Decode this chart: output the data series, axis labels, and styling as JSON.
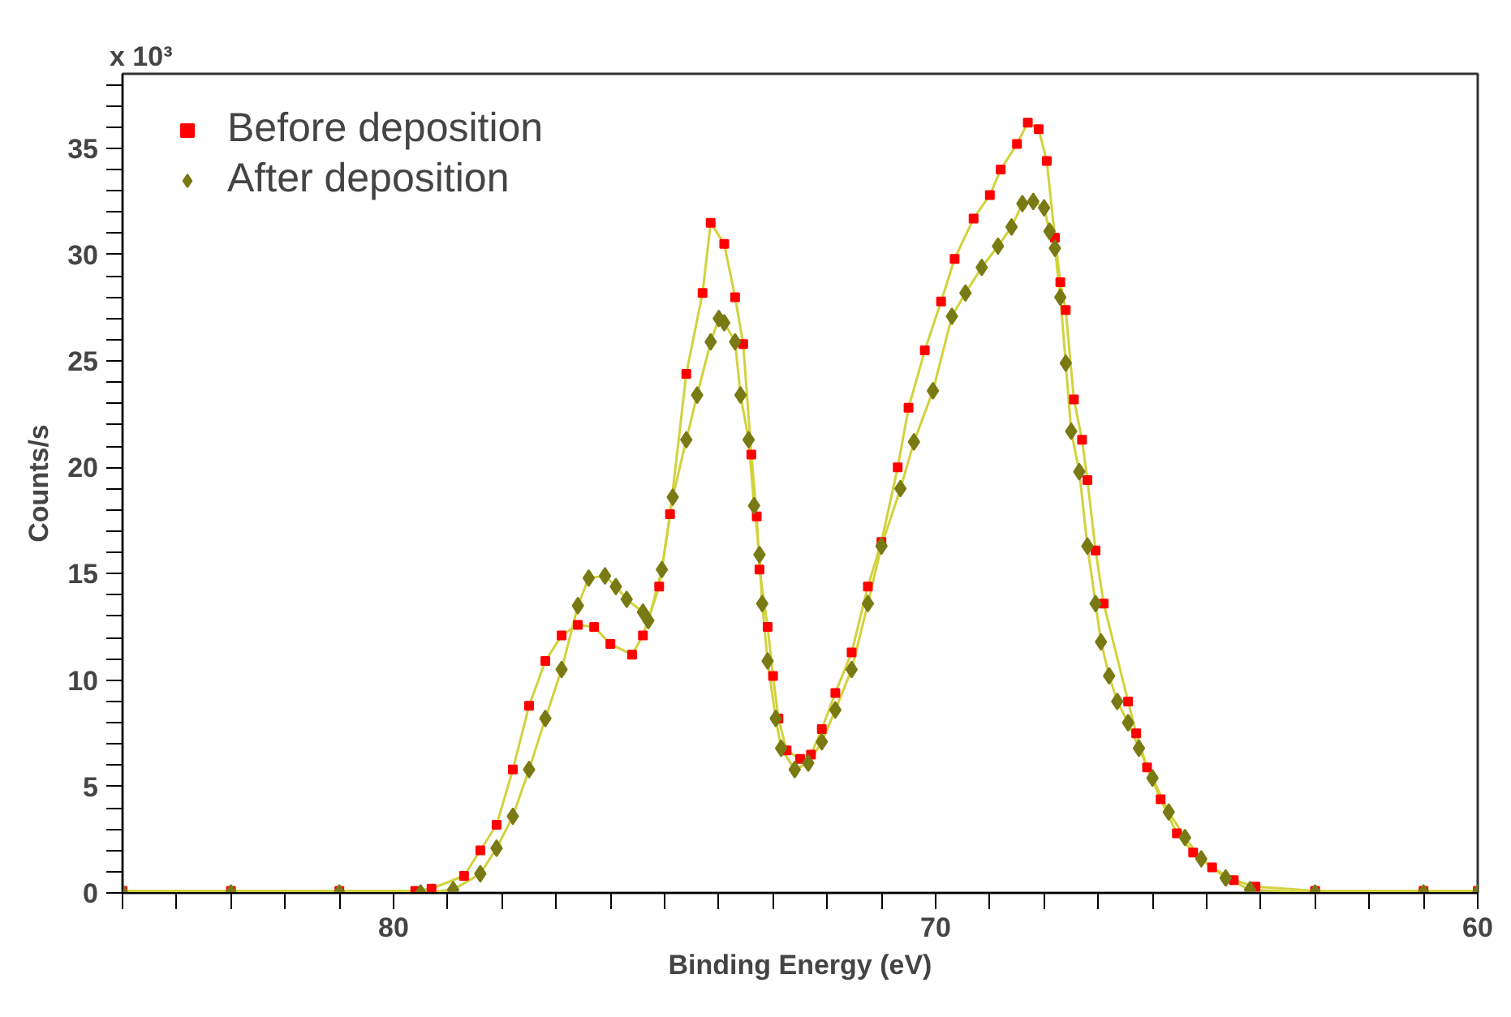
{
  "chart_data": {
    "type": "scatter",
    "xlabel": "Binding Energy (eV)",
    "ylabel": "Counts/s",
    "annotations": [
      "x 10³"
    ],
    "xlim": [
      85,
      60
    ],
    "ylim": [
      0,
      38.5
    ],
    "xticks": [
      {
        "value": 85,
        "label": null
      },
      {
        "value": 84,
        "label": null
      },
      {
        "value": 83,
        "label": null
      },
      {
        "value": 82,
        "label": null
      },
      {
        "value": 81,
        "label": null
      },
      80,
      {
        "value": 79,
        "label": null
      },
      {
        "value": 78,
        "label": null
      },
      {
        "value": 77,
        "label": null
      },
      {
        "value": 76,
        "label": null
      },
      {
        "value": 75,
        "label": null
      },
      {
        "value": 74,
        "label": null
      },
      {
        "value": 73,
        "label": null
      },
      {
        "value": 72,
        "label": null
      },
      {
        "value": 71,
        "label": null
      },
      70,
      {
        "value": 69,
        "label": null
      },
      {
        "value": 68,
        "label": null
      },
      {
        "value": 67,
        "label": null
      },
      {
        "value": 66,
        "label": null
      },
      {
        "value": 65,
        "label": null
      },
      {
        "value": 64,
        "label": null
      },
      {
        "value": 63,
        "label": null
      },
      {
        "value": 62,
        "label": null
      },
      {
        "value": 61,
        "label": null
      },
      60
    ],
    "yticks": [
      0,
      {
        "value": 1,
        "label": null
      },
      {
        "value": 2,
        "label": null
      },
      {
        "value": 3,
        "label": null
      },
      {
        "value": 4,
        "label": null
      },
      5,
      {
        "value": 6,
        "label": null
      },
      {
        "value": 7,
        "label": null
      },
      {
        "value": 8,
        "label": null
      },
      {
        "value": 9,
        "label": null
      },
      10,
      {
        "value": 11,
        "label": null
      },
      {
        "value": 12,
        "label": null
      },
      {
        "value": 13,
        "label": null
      },
      {
        "value": 14,
        "label": null
      },
      15,
      {
        "value": 16,
        "label": null
      },
      {
        "value": 17,
        "label": null
      },
      {
        "value": 18,
        "label": null
      },
      {
        "value": 19,
        "label": null
      },
      20,
      {
        "value": 21,
        "label": null
      },
      {
        "value": 22,
        "label": null
      },
      {
        "value": 23,
        "label": null
      },
      {
        "value": 24,
        "label": null
      },
      25,
      {
        "value": 26,
        "label": null
      },
      {
        "value": 27,
        "label": null
      },
      {
        "value": 28,
        "label": null
      },
      {
        "value": 29,
        "label": null
      },
      30,
      {
        "value": 31,
        "label": null
      },
      {
        "value": 32,
        "label": null
      },
      {
        "value": 33,
        "label": null
      },
      {
        "value": 34,
        "label": null
      },
      35,
      {
        "value": 36,
        "label": null
      },
      {
        "value": 37,
        "label": null
      },
      {
        "value": 38,
        "label": null
      }
    ],
    "grid": false,
    "legend": "top left",
    "series": [
      {
        "type": "line",
        "color": "#d2d23c",
        "x": [
          85,
          83,
          81,
          79.6,
          79.3,
          78.7,
          78.4,
          78.1,
          77.8,
          77.5,
          77.2,
          76.9,
          76.6,
          76.3,
          76.0,
          75.6,
          75.4,
          75.1,
          74.9,
          74.6,
          74.3,
          74.15,
          73.9,
          73.7,
          73.55,
          73.4,
          73.3,
          73.25,
          73.1,
          73.0,
          72.9,
          72.75,
          72.5,
          72.3,
          72.1,
          71.85,
          71.55,
          71.25,
          71.0,
          70.7,
          70.5,
          70.2,
          69.9,
          69.65,
          69.3,
          69.0,
          68.8,
          68.5,
          68.3,
          68.1,
          67.95,
          67.8,
          67.7,
          67.6,
          67.45,
          67.3,
          67.2,
          67.05,
          66.9,
          66.45,
          66.3,
          66.1,
          65.85,
          65.55,
          65.25,
          64.9,
          64.5,
          64.1,
          63,
          61,
          60
        ],
        "values": [
          0.1,
          0.1,
          0.1,
          0.1,
          0.2,
          0.8,
          2,
          3.2,
          5.8,
          8.8,
          10.9,
          12.1,
          12.6,
          12.5,
          11.7,
          11.2,
          12.1,
          14.4,
          17.8,
          24.4,
          28.2,
          31.5,
          30.5,
          28,
          25.8,
          20.6,
          17.7,
          15.2,
          12.5,
          10.2,
          8.2,
          6.7,
          6.3,
          6.5,
          7.7,
          9.4,
          11.3,
          14.4,
          16.5,
          20,
          22.8,
          25.5,
          27.8,
          29.8,
          31.7,
          32.8,
          34,
          35.2,
          36.2,
          35.9,
          34.4,
          30.8,
          28.7,
          27.4,
          23.2,
          21.3,
          19.4,
          16.1,
          13.6,
          9,
          7.5,
          5.9,
          4.4,
          2.8,
          1.9,
          1.2,
          0.6,
          0.3,
          0.1,
          0.1,
          0.1
        ]
      },
      {
        "type": "line",
        "color": "#d2d23c",
        "x": [
          85,
          83,
          81,
          79.5,
          78.9,
          78.4,
          78.1,
          77.8,
          77.5,
          77.2,
          76.9,
          76.6,
          76.4,
          76.1,
          75.9,
          75.7,
          75.4,
          75.3,
          75.05,
          74.85,
          74.6,
          74.4,
          74.15,
          74.0,
          73.9,
          73.7,
          73.6,
          73.45,
          73.35,
          73.25,
          73.2,
          73.1,
          72.95,
          72.85,
          72.6,
          72.35,
          72.1,
          71.85,
          71.55,
          71.25,
          71.0,
          70.65,
          70.4,
          70.05,
          69.7,
          69.45,
          69.15,
          68.85,
          68.6,
          68.4,
          68.2,
          68.0,
          67.9,
          67.8,
          67.7,
          67.6,
          67.5,
          67.35,
          67.2,
          67.05,
          66.95,
          66.8,
          66.65,
          66.45,
          66.25,
          66.0,
          65.7,
          65.4,
          65.1,
          64.65,
          64.2,
          63,
          61,
          60
        ],
        "values": [
          0,
          0,
          0,
          0,
          0.15,
          0.9,
          2.1,
          3.6,
          5.8,
          8.2,
          10.5,
          13.5,
          14.8,
          14.9,
          14.4,
          13.8,
          13.2,
          12.8,
          15.2,
          18.6,
          21.3,
          23.4,
          25.9,
          27,
          26.8,
          25.9,
          23.4,
          21.3,
          18.2,
          15.9,
          13.6,
          10.9,
          8.2,
          6.8,
          5.8,
          6.1,
          7.1,
          8.6,
          10.5,
          13.6,
          16.3,
          19,
          21.2,
          23.6,
          27.1,
          28.2,
          29.4,
          30.4,
          31.3,
          32.4,
          32.5,
          32.2,
          31.1,
          30.3,
          28,
          24.9,
          21.7,
          19.8,
          16.3,
          13.6,
          11.8,
          10.2,
          9.0,
          8.0,
          6.8,
          5.4,
          3.8,
          2.6,
          1.6,
          0.7,
          0.15,
          0,
          0,
          0
        ]
      },
      {
        "name": "Before deposition",
        "color": "#ff0000",
        "marker": "square",
        "x": [
          85,
          83,
          81,
          79.6,
          79.3,
          78.7,
          78.4,
          78.1,
          77.8,
          77.5,
          77.2,
          76.9,
          76.6,
          76.3,
          76.0,
          75.6,
          75.4,
          75.1,
          74.9,
          74.6,
          74.3,
          74.15,
          73.9,
          73.7,
          73.55,
          73.4,
          73.3,
          73.25,
          73.1,
          73.0,
          72.9,
          72.75,
          72.5,
          72.3,
          72.1,
          71.85,
          71.55,
          71.25,
          71.0,
          70.7,
          70.5,
          70.2,
          69.9,
          69.65,
          69.3,
          69.0,
          68.8,
          68.5,
          68.3,
          68.1,
          67.95,
          67.8,
          67.7,
          67.6,
          67.45,
          67.3,
          67.2,
          67.05,
          66.9,
          66.45,
          66.3,
          66.1,
          65.85,
          65.55,
          65.25,
          64.9,
          64.5,
          64.1,
          63,
          61,
          60
        ],
        "values": [
          0.1,
          0.1,
          0.1,
          0.1,
          0.2,
          0.8,
          2,
          3.2,
          5.8,
          8.8,
          10.9,
          12.1,
          12.6,
          12.5,
          11.7,
          11.2,
          12.1,
          14.4,
          17.8,
          24.4,
          28.2,
          31.5,
          30.5,
          28,
          25.8,
          20.6,
          17.7,
          15.2,
          12.5,
          10.2,
          8.2,
          6.7,
          6.3,
          6.5,
          7.7,
          9.4,
          11.3,
          14.4,
          16.5,
          20,
          22.8,
          25.5,
          27.8,
          29.8,
          31.7,
          32.8,
          34,
          35.2,
          36.2,
          35.9,
          34.4,
          30.8,
          28.7,
          27.4,
          23.2,
          21.3,
          19.4,
          16.1,
          13.6,
          9,
          7.5,
          5.9,
          4.4,
          2.8,
          1.9,
          1.2,
          0.6,
          0.3,
          0.1,
          0.1,
          0.1
        ]
      },
      {
        "name": "After deposition",
        "color": "#7a7a14",
        "marker": "diamond",
        "x": [
          85,
          83,
          81,
          79.5,
          78.9,
          78.4,
          78.1,
          77.8,
          77.5,
          77.2,
          76.9,
          76.6,
          76.4,
          76.1,
          75.9,
          75.7,
          75.4,
          75.3,
          75.05,
          74.85,
          74.6,
          74.4,
          74.15,
          74.0,
          73.9,
          73.7,
          73.6,
          73.45,
          73.35,
          73.25,
          73.2,
          73.1,
          72.95,
          72.85,
          72.6,
          72.35,
          72.1,
          71.85,
          71.55,
          71.25,
          71.0,
          70.65,
          70.4,
          70.05,
          69.7,
          69.45,
          69.15,
          68.85,
          68.6,
          68.4,
          68.2,
          68.0,
          67.9,
          67.8,
          67.7,
          67.6,
          67.5,
          67.35,
          67.2,
          67.05,
          66.95,
          66.8,
          66.65,
          66.45,
          66.25,
          66.0,
          65.7,
          65.4,
          65.1,
          64.65,
          64.2,
          63,
          61,
          60
        ],
        "values": [
          0,
          0,
          0,
          0,
          0.15,
          0.9,
          2.1,
          3.6,
          5.8,
          8.2,
          10.5,
          13.5,
          14.8,
          14.9,
          14.4,
          13.8,
          13.2,
          12.8,
          15.2,
          18.6,
          21.3,
          23.4,
          25.9,
          27,
          26.8,
          25.9,
          23.4,
          21.3,
          18.2,
          15.9,
          13.6,
          10.9,
          8.2,
          6.8,
          5.8,
          6.1,
          7.1,
          8.6,
          10.5,
          13.6,
          16.3,
          19,
          21.2,
          23.6,
          27.1,
          28.2,
          29.4,
          30.4,
          31.3,
          32.4,
          32.5,
          32.2,
          31.1,
          30.3,
          28,
          24.9,
          21.7,
          19.8,
          16.3,
          13.6,
          11.8,
          10.2,
          9.0,
          8.0,
          6.8,
          5.4,
          3.8,
          2.6,
          1.6,
          0.7,
          0.15,
          0,
          0,
          0
        ]
      }
    ]
  }
}
